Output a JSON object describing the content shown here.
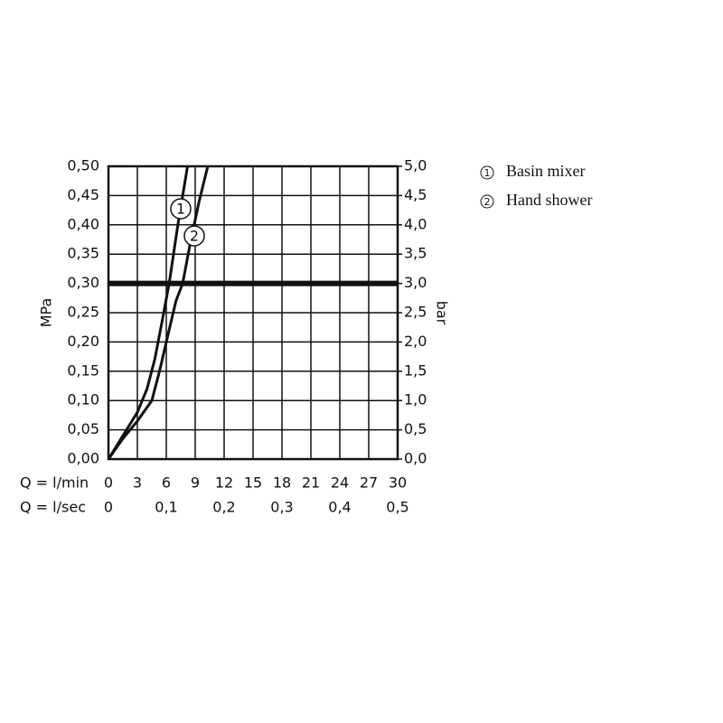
{
  "chart_data": {
    "type": "line",
    "xlabel": "Q = l/min",
    "x2label": "Q = l/sec",
    "ylabel": "MPa",
    "y2label": "bar",
    "xlim": [
      0,
      30
    ],
    "xticks": [
      0,
      3,
      6,
      9,
      12,
      15,
      18,
      21,
      24,
      27,
      30
    ],
    "x2lim": [
      0,
      0.5
    ],
    "x2ticks": [
      0,
      {
        "value": 0.1,
        "label": "0,1"
      },
      {
        "value": 0.2,
        "label": "0,2"
      },
      {
        "value": 0.3,
        "label": "0,3"
      },
      {
        "value": 0.4,
        "label": "0,4"
      },
      {
        "value": 0.5,
        "label": "0,5"
      }
    ],
    "ylim": [
      0,
      0.5
    ],
    "yticks": [
      {
        "value": 0,
        "label": "0,00"
      },
      {
        "value": 0.05,
        "label": "0,05"
      },
      {
        "value": 0.1,
        "label": "0,10"
      },
      {
        "value": 0.15,
        "label": "0,15"
      },
      {
        "value": 0.2,
        "label": "0,20"
      },
      {
        "value": 0.25,
        "label": "0,25"
      },
      {
        "value": 0.3,
        "label": "0,30"
      },
      {
        "value": 0.35,
        "label": "0,35"
      },
      {
        "value": 0.4,
        "label": "0,40"
      },
      {
        "value": 0.45,
        "label": "0,45"
      },
      {
        "value": 0.5,
        "label": "0,50"
      }
    ],
    "y2lim": [
      0,
      5
    ],
    "y2ticks": [
      {
        "value": 0,
        "label": "0,0"
      },
      {
        "value": 0.5,
        "label": "0,5"
      },
      {
        "value": 1,
        "label": "1,0"
      },
      {
        "value": 1.5,
        "label": "1,5"
      },
      {
        "value": 2,
        "label": "2,0"
      },
      {
        "value": 2.5,
        "label": "2,5"
      },
      {
        "value": 3,
        "label": "3,0"
      },
      {
        "value": 3.5,
        "label": "3,5"
      },
      {
        "value": 4,
        "label": "4,0"
      },
      {
        "value": 4.5,
        "label": "4,5"
      },
      {
        "value": 5,
        "label": "5,0"
      }
    ],
    "grid": true,
    "highlight_y": 0.3,
    "series": [
      {
        "name": "Basin mixer",
        "label": "1",
        "color": "#111111",
        "x": [
          0,
          1.5,
          3,
          4,
          4.8,
          5.5,
          6.3,
          7.2,
          8.2
        ],
        "values": [
          0,
          0.04,
          0.08,
          0.12,
          0.17,
          0.23,
          0.3,
          0.4,
          0.5
        ]
      },
      {
        "name": "Hand shower",
        "label": "2",
        "color": "#111111",
        "x": [
          0,
          1.5,
          3,
          4.5,
          5.3,
          6,
          7,
          7.7,
          8.5,
          9.4,
          10.3
        ],
        "values": [
          0,
          0.035,
          0.065,
          0.1,
          0.15,
          0.2,
          0.27,
          0.3,
          0.37,
          0.44,
          0.5
        ]
      }
    ]
  }
}
